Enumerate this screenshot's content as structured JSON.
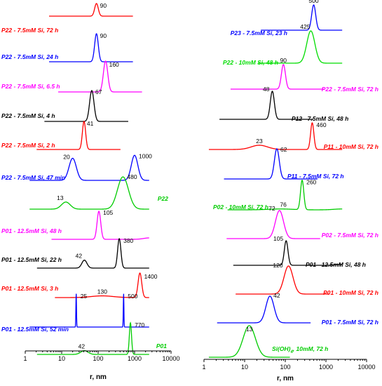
{
  "chart_data": [
    {
      "type": "line",
      "panel": "left",
      "xlabel": "r, nm",
      "xscale": "log",
      "xlim": [
        1,
        10000
      ],
      "xticks": [
        "1",
        "10",
        "100",
        "1000",
        "10000"
      ],
      "grid": false,
      "curves": [
        {
          "name": "P22 - 7.5mM Si, 72 h",
          "color": "#ff0000",
          "peaks": [
            {
              "r": 90,
              "amp": 1.0,
              "width": 0.05,
              "label": "90"
            }
          ]
        },
        {
          "name": "P22 - 7.5mM Si, 24 h",
          "color": "#0000ff",
          "peaks": [
            {
              "r": 90,
              "amp": 1.0,
              "width": 0.05,
              "label": "90"
            }
          ]
        },
        {
          "name": "P22 - 7.5mM Si, 6.5 h",
          "color": "#ff00ff",
          "peaks": [
            {
              "r": 160,
              "amp": 1.0,
              "width": 0.06,
              "label": "160"
            }
          ]
        },
        {
          "name": "P22 - 7.5mM Si, 4 h",
          "color": "#000000",
          "peaks": [
            {
              "r": 67,
              "amp": 1.0,
              "width": 0.06,
              "label": "67"
            }
          ]
        },
        {
          "name": "P22 - 7.5mM Si, 2 h",
          "color": "#ff0000",
          "peaks": [
            {
              "r": 41,
              "amp": 1.0,
              "width": 0.045,
              "label": "41"
            }
          ]
        },
        {
          "name": "P22 - 7.5mM Si, 47 min",
          "color": "#0000ff",
          "peaks": [
            {
              "r": 20,
              "amp": 0.75,
              "width": 0.1,
              "label": "20"
            },
            {
              "r": 1000,
              "amp": 0.85,
              "width": 0.09,
              "label": "1000"
            }
          ]
        },
        {
          "name": "P22",
          "color": "#00cc00",
          "peaks": [
            {
              "r": 13,
              "amp": 0.22,
              "width": 0.12,
              "label": "13"
            },
            {
              "r": 480,
              "amp": 1.0,
              "width": 0.15,
              "label": "480"
            }
          ]
        },
        {
          "name": "P01 - 12.5mM Si, 48 h",
          "color": "#ff00ff",
          "peaks": [
            {
              "r": 105,
              "amp": 1.0,
              "width": 0.05,
              "label": "105"
            },
            {
              "r": 2500,
              "amp": 0.05,
              "width": 0.15,
              "label": ""
            }
          ]
        },
        {
          "name": "P01 - 12.5mM Si, 22 h",
          "color": "#000000",
          "peaks": [
            {
              "r": 42,
              "amp": 0.27,
              "width": 0.07,
              "label": "42"
            },
            {
              "r": 380,
              "amp": 1.0,
              "width": 0.045,
              "label": "380"
            }
          ]
        },
        {
          "name": "P01 - 12.5mM Si, 3 h",
          "color": "#ff0000",
          "peaks": [
            {
              "r": 130,
              "amp": 0.07,
              "width": 0.3,
              "label": "130"
            },
            {
              "r": 1400,
              "amp": 1.0,
              "width": 0.05,
              "label": "1400"
            }
          ]
        },
        {
          "name": "P01 - 12.5mM Si, 52 min",
          "color": "#0000ff",
          "peaks": [
            {
              "r": 25,
              "amp": 1.0,
              "width": 0.008,
              "label": "25"
            },
            {
              "r": 500,
              "amp": 1.0,
              "width": 0.008,
              "label": "500"
            }
          ]
        },
        {
          "name": "P01",
          "color": "#00cc00",
          "peaks": [
            {
              "r": 42,
              "amp": 0.12,
              "width": 0.1,
              "label": "42"
            },
            {
              "r": 770,
              "amp": 1.0,
              "width": 0.03,
              "label": "770"
            }
          ]
        }
      ]
    },
    {
      "type": "line",
      "panel": "right",
      "xlabel": "r, nm",
      "xscale": "log",
      "xlim": [
        1,
        10000
      ],
      "xticks": [
        "1",
        "10",
        "100",
        "1000",
        "10000"
      ],
      "grid": false,
      "curves": [
        {
          "name": "P23 - 7.5mM Si, 23 h",
          "color": "#0000ff",
          "peaks": [
            {
              "r": 500,
              "amp": 1.0,
              "width": 0.05,
              "label": "500"
            }
          ]
        },
        {
          "name": "P22 - 10mM Si, 48 h",
          "color": "#00dd00",
          "peaks": [
            {
              "r": 425,
              "amp": 1.0,
              "width": 0.1,
              "label": "425"
            }
          ]
        },
        {
          "name": "P22 - 7.5mM Si, 72 h",
          "color": "#ff00ff",
          "peaks": [
            {
              "r": 90,
              "amp": 1.0,
              "width": 0.05,
              "label": "90"
            }
          ]
        },
        {
          "name": "P12 - 7.5mM Si, 48 h",
          "color": "#000000",
          "peaks": [
            {
              "r": 48,
              "amp": 1.0,
              "width": 0.05,
              "label": "48"
            }
          ]
        },
        {
          "name": "P11 - 10mM Si, 72 h",
          "color": "#ff0000",
          "peaks": [
            {
              "r": 23,
              "amp": 0.16,
              "width": 0.2,
              "label": "23"
            },
            {
              "r": 460,
              "amp": 1.0,
              "width": 0.04,
              "label": "460"
            }
          ]
        },
        {
          "name": "P11 - 7.5mM Si, 72 h",
          "color": "#0000ff",
          "peaks": [
            {
              "r": 62,
              "amp": 1.0,
              "width": 0.06,
              "label": "62"
            }
          ]
        },
        {
          "name": "P02 - 10mM Si, 72 h",
          "color": "#00cc00",
          "peaks": [
            {
              "r": 76,
              "amp": 0.03,
              "width": 0.3,
              "label": "76"
            },
            {
              "r": 260,
              "amp": 1.0,
              "width": 0.04,
              "label": "260"
            },
            {
              "r": 2500,
              "amp": 0.03,
              "width": 0.2,
              "label": ""
            }
          ]
        },
        {
          "name": "P02 - 7.5mM Si, 72 h",
          "color": "#ff00ff",
          "peaks": [
            {
              "r": 72,
              "amp": 1.0,
              "width": 0.1,
              "label": "72"
            }
          ]
        },
        {
          "name": "P01 - 12.5mM Si, 48 h",
          "color": "#000000",
          "peaks": [
            {
              "r": 105,
              "amp": 1.0,
              "width": 0.045,
              "label": "105"
            },
            {
              "r": 2500,
              "amp": 0.04,
              "width": 0.15,
              "label": ""
            }
          ]
        },
        {
          "name": "P01 - 10mM Si, 72 h",
          "color": "#ff0000",
          "peaks": [
            {
              "r": 120,
              "amp": 1.0,
              "width": 0.11,
              "label": "120"
            }
          ]
        },
        {
          "name": "P01 - 7.5mM Si, 72 h",
          "color": "#0000ff",
          "peaks": [
            {
              "r": 42,
              "amp": 1.0,
              "width": 0.1,
              "label": "42"
            }
          ]
        },
        {
          "name": "Si(OH)4, 10mM, 72 h",
          "color": "#00cc00",
          "peaks": [
            {
              "r": 13,
              "amp": 1.0,
              "width": 0.15,
              "label": "13"
            }
          ]
        }
      ]
    }
  ]
}
